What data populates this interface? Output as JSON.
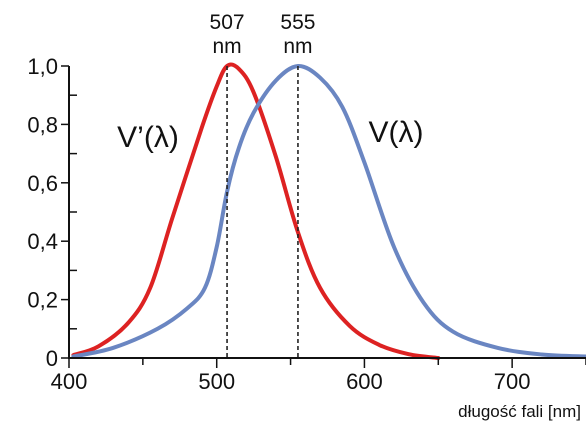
{
  "chart_data": {
    "type": "line",
    "title": "",
    "xlabel": "długość fali [nm]",
    "ylabel": "",
    "xlim": [
      400,
      750
    ],
    "ylim": [
      0,
      1.0
    ],
    "x_ticks": [
      {
        "value": 400,
        "label": "400"
      },
      {
        "value": 500,
        "label": "500"
      },
      {
        "value": 600,
        "label": "600"
      },
      {
        "value": 700,
        "label": "700"
      }
    ],
    "y_ticks": [
      {
        "value": 0,
        "label": "0"
      },
      {
        "value": 0.2,
        "label": "0,2"
      },
      {
        "value": 0.4,
        "label": "0,4"
      },
      {
        "value": 0.6,
        "label": "0,6"
      },
      {
        "value": 0.8,
        "label": "0,8"
      },
      {
        "value": 1.0,
        "label": "1,0"
      }
    ],
    "grid": false,
    "peaks": [
      {
        "value": 507,
        "line1": "507",
        "line2": "nm"
      },
      {
        "value": 555,
        "line1": "555",
        "line2": "nm"
      }
    ],
    "series": [
      {
        "name": "V’(λ)",
        "color": "#dd2222",
        "points": [
          [
            403,
            0.01
          ],
          [
            420,
            0.04
          ],
          [
            440,
            0.12
          ],
          [
            455,
            0.24
          ],
          [
            470,
            0.48
          ],
          [
            490,
            0.79
          ],
          [
            500,
            0.93
          ],
          [
            507,
            1.0
          ],
          [
            515,
            0.99
          ],
          [
            525,
            0.91
          ],
          [
            540,
            0.69
          ],
          [
            555,
            0.43
          ],
          [
            570,
            0.24
          ],
          [
            590,
            0.11
          ],
          [
            610,
            0.045
          ],
          [
            630,
            0.013
          ],
          [
            650,
            0.0
          ]
        ]
      },
      {
        "name": "V(λ)",
        "color": "#6a86c2",
        "points": [
          [
            403,
            0.005
          ],
          [
            430,
            0.035
          ],
          [
            460,
            0.1
          ],
          [
            480,
            0.17
          ],
          [
            492,
            0.24
          ],
          [
            500,
            0.38
          ],
          [
            507,
            0.57
          ],
          [
            515,
            0.72
          ],
          [
            525,
            0.84
          ],
          [
            540,
            0.95
          ],
          [
            555,
            1.0
          ],
          [
            570,
            0.96
          ],
          [
            585,
            0.86
          ],
          [
            600,
            0.67
          ],
          [
            620,
            0.38
          ],
          [
            640,
            0.19
          ],
          [
            660,
            0.09
          ],
          [
            690,
            0.035
          ],
          [
            720,
            0.012
          ],
          [
            750,
            0.005
          ]
        ]
      }
    ]
  }
}
